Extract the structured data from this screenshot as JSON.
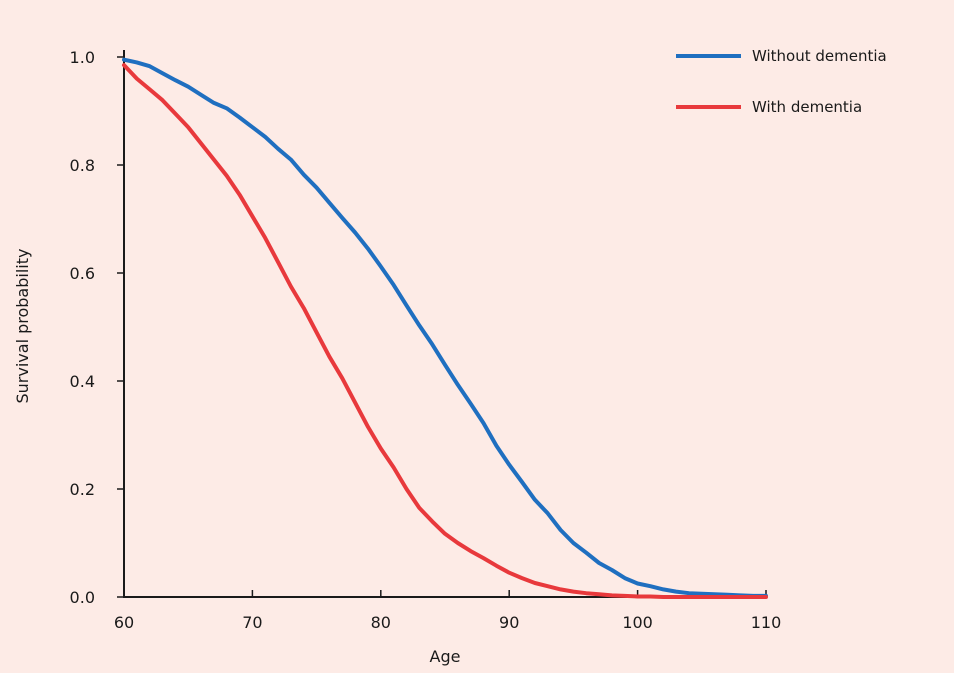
{
  "chart_data": {
    "type": "line",
    "title": "",
    "xlabel": "Age",
    "ylabel": "Survival probability",
    "xlim": [
      60,
      110
    ],
    "ylim": [
      0,
      1
    ],
    "xticks": [
      "60",
      "70",
      "80",
      "90",
      "100",
      "110"
    ],
    "yticks": [
      "0.0",
      "0.2",
      "0.4",
      "0.6",
      "0.8",
      "1.0"
    ],
    "grid": false,
    "legend_position": "top-right",
    "background": "#fdebe6",
    "series": [
      {
        "name": "Without dementia",
        "color": "#1f6fc0",
        "x": [
          60,
          61,
          62,
          63,
          64,
          65,
          66,
          67,
          68,
          69,
          70,
          71,
          72,
          73,
          74,
          75,
          76,
          77,
          78,
          79,
          80,
          81,
          82,
          83,
          84,
          85,
          86,
          87,
          88,
          89,
          90,
          91,
          92,
          93,
          94,
          95,
          96,
          97,
          98,
          99,
          100,
          101,
          102,
          103,
          104,
          105,
          106,
          107,
          108,
          109,
          110
        ],
        "values": [
          0.995,
          0.99,
          0.983,
          0.97,
          0.957,
          0.945,
          0.93,
          0.915,
          0.905,
          0.888,
          0.87,
          0.852,
          0.83,
          0.81,
          0.782,
          0.758,
          0.73,
          0.702,
          0.675,
          0.645,
          0.612,
          0.578,
          0.54,
          0.503,
          0.468,
          0.43,
          0.393,
          0.358,
          0.322,
          0.28,
          0.245,
          0.213,
          0.18,
          0.155,
          0.124,
          0.1,
          0.082,
          0.063,
          0.05,
          0.035,
          0.025,
          0.02,
          0.014,
          0.01,
          0.007,
          0.006,
          0.005,
          0.004,
          0.003,
          0.002,
          0.002
        ]
      },
      {
        "name": "With dementia",
        "color": "#e8393c",
        "x": [
          60,
          61,
          62,
          63,
          64,
          65,
          66,
          67,
          68,
          69,
          70,
          71,
          72,
          73,
          74,
          75,
          76,
          77,
          78,
          79,
          80,
          81,
          82,
          83,
          84,
          85,
          86,
          87,
          88,
          89,
          90,
          91,
          92,
          93,
          94,
          95,
          96,
          97,
          98,
          99,
          100,
          101,
          102,
          103,
          104,
          105,
          106,
          107,
          108,
          109,
          110
        ],
        "values": [
          0.985,
          0.96,
          0.94,
          0.92,
          0.895,
          0.87,
          0.84,
          0.81,
          0.78,
          0.745,
          0.705,
          0.665,
          0.62,
          0.575,
          0.535,
          0.49,
          0.445,
          0.405,
          0.36,
          0.315,
          0.275,
          0.24,
          0.2,
          0.165,
          0.14,
          0.117,
          0.1,
          0.085,
          0.072,
          0.058,
          0.045,
          0.035,
          0.026,
          0.02,
          0.014,
          0.01,
          0.007,
          0.005,
          0.003,
          0.002,
          0.001,
          0.001,
          0,
          0,
          0,
          0,
          0,
          0,
          0,
          0,
          0
        ]
      }
    ]
  }
}
